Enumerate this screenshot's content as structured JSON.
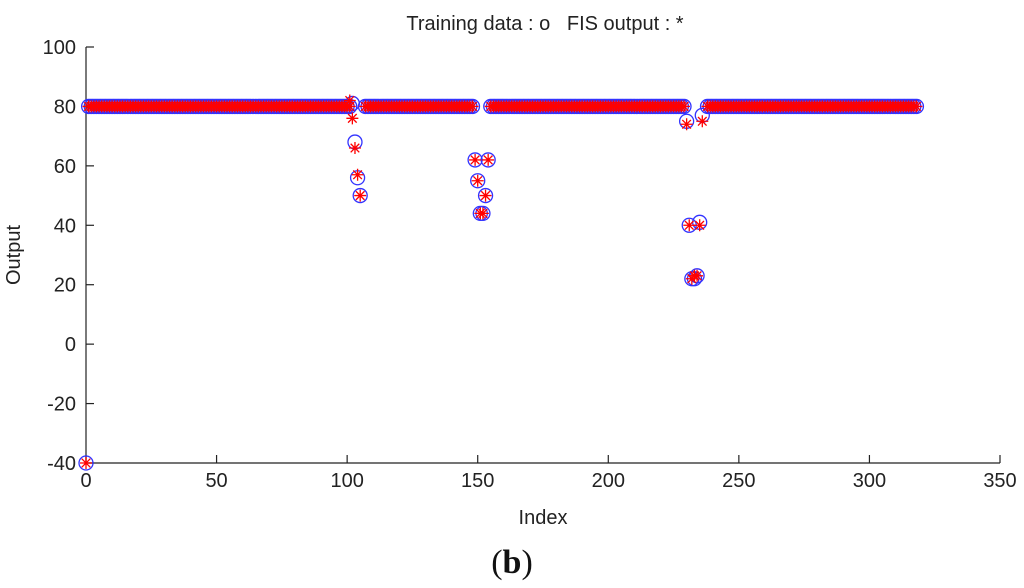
{
  "chart_data": {
    "type": "scatter",
    "title": "Training data : o   FIS output : *",
    "xlabel": "Index",
    "ylabel": "Output",
    "xlim": [
      0,
      350
    ],
    "ylim": [
      -40,
      100
    ],
    "xticks": [
      "0",
      "50",
      "100",
      "150",
      "200",
      "250",
      "300",
      "350"
    ],
    "yticks": [
      "-40",
      "-20",
      "0",
      "20",
      "40",
      "60",
      "80",
      "100"
    ],
    "grid": false,
    "series": [
      {
        "name": "Training data",
        "marker": "o",
        "color": "#3333ff",
        "segments": [
          {
            "x_from": 1,
            "x_to": 101,
            "y": 80
          },
          {
            "x_from": 107,
            "x_to": 148,
            "y": 80
          },
          {
            "x_from": 155,
            "x_to": 229,
            "y": 80
          },
          {
            "x_from": 238,
            "x_to": 318,
            "y": 80
          }
        ],
        "points": [
          [
            0,
            -40
          ],
          [
            102,
            81
          ],
          [
            103,
            68
          ],
          [
            104,
            56
          ],
          [
            105,
            50
          ],
          [
            149,
            62
          ],
          [
            150,
            55
          ],
          [
            151,
            44
          ],
          [
            152,
            44
          ],
          [
            153,
            50
          ],
          [
            154,
            62
          ],
          [
            230,
            75
          ],
          [
            231,
            40
          ],
          [
            232,
            22
          ],
          [
            233,
            22
          ],
          [
            234,
            23
          ],
          [
            235,
            41
          ],
          [
            236,
            77
          ]
        ]
      },
      {
        "name": "FIS output",
        "marker": "*",
        "color": "#ff0000",
        "segments": [
          {
            "x_from": 1,
            "x_to": 101,
            "y": 80
          },
          {
            "x_from": 107,
            "x_to": 148,
            "y": 80
          },
          {
            "x_from": 155,
            "x_to": 229,
            "y": 80
          },
          {
            "x_from": 238,
            "x_to": 318,
            "y": 80
          }
        ],
        "points": [
          [
            0,
            -40
          ],
          [
            101,
            82
          ],
          [
            102,
            76
          ],
          [
            103,
            66
          ],
          [
            104,
            57
          ],
          [
            105,
            50
          ],
          [
            149,
            62
          ],
          [
            150,
            55
          ],
          [
            151,
            44
          ],
          [
            152,
            44
          ],
          [
            153,
            50
          ],
          [
            154,
            62
          ],
          [
            230,
            74
          ],
          [
            231,
            40
          ],
          [
            232,
            22
          ],
          [
            233,
            23
          ],
          [
            234,
            23
          ],
          [
            235,
            40
          ],
          [
            236,
            75
          ]
        ]
      }
    ]
  },
  "caption": {
    "open": "(",
    "letter": "b",
    "close": ")"
  }
}
